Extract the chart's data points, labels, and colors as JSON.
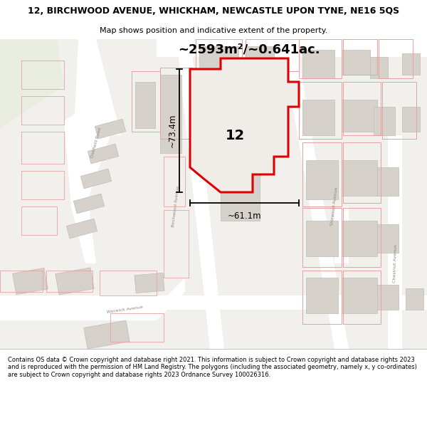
{
  "title_line1": "12, BIRCHWOOD AVENUE, WHICKHAM, NEWCASTLE UPON TYNE, NE16 5QS",
  "title_line2": "Map shows position and indicative extent of the property.",
  "area_text": "~2593m²/~0.641ac.",
  "width_text": "~61.1m",
  "height_text": "~73.4m",
  "number_label": "12",
  "footer_text": "Contains OS data © Crown copyright and database right 2021. This information is subject to Crown copyright and database rights 2023 and is reproduced with the permission of HM Land Registry. The polygons (including the associated geometry, namely x, y co-ordinates) are subject to Crown copyright and database rights 2023 Ordnance Survey 100026316.",
  "bg_color": "#f2f0ed",
  "road_color": "#ffffff",
  "building_color": "#d6d2cb",
  "building_edge": "#c0bcb5",
  "plot_outline_color": "#e8a0a0",
  "highlight_color": "#dd0000",
  "highlight_fill": "#f0ede8",
  "green_area": "#e8ede0",
  "footer_bg": "#ffffff",
  "title_fontsize": 9.0,
  "subtitle_fontsize": 8.0,
  "area_fontsize": 13.0,
  "label_fontsize": 14.0,
  "dim_fontsize": 8.5,
  "footer_fontsize": 6.0
}
